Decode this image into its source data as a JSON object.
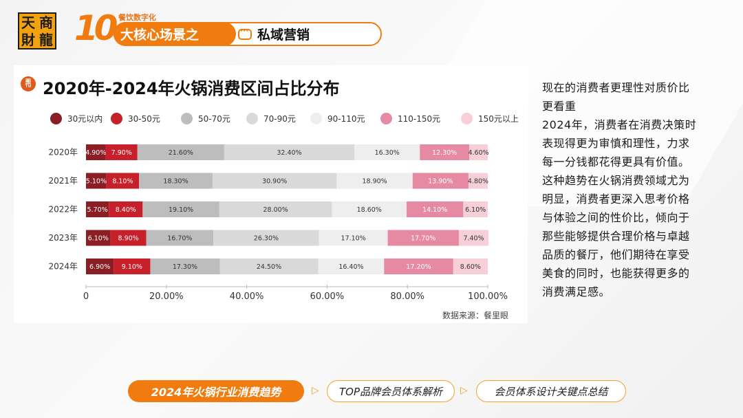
{
  "logo": {
    "chars": [
      "天",
      "商",
      "財",
      "龍"
    ]
  },
  "header": {
    "ten": "10",
    "sub_label": "餐饮数字化",
    "title_left": "大核心场景之",
    "title_right": "私域营销"
  },
  "chart_data": {
    "type": "bar",
    "orientation": "horizontal",
    "stacked": true,
    "title": "2020年-2024年火锅消费区间占比分布",
    "categories": [
      "2020年",
      "2021年",
      "2022年",
      "2023年",
      "2024年"
    ],
    "series": [
      {
        "name": "30元以内",
        "color": "#8b1d24",
        "values": [
          4.9,
          5.1,
          5.7,
          6.1,
          6.9
        ],
        "labels": [
          "4.90%",
          "5.10%",
          "5.70%",
          "6.10%",
          "6.90%"
        ]
      },
      {
        "name": "30-50元",
        "color": "#c8202a",
        "values": [
          7.9,
          8.1,
          8.4,
          8.9,
          9.1
        ],
        "labels": [
          "7.90%",
          "8.10%",
          "8.40%",
          "8.90%",
          "9.10%"
        ]
      },
      {
        "name": "50-70元",
        "color": "#bdbdbd",
        "values": [
          21.6,
          18.3,
          19.1,
          16.7,
          17.3
        ],
        "labels": [
          "21.60%",
          "18.30%",
          "19.10%",
          "16.70%",
          "17.30%"
        ]
      },
      {
        "name": "70-90元",
        "color": "#d9d9d9",
        "values": [
          32.4,
          30.9,
          28.0,
          26.3,
          24.5
        ],
        "labels": [
          "32.40%",
          "30.90%",
          "28.00%",
          "26.30%",
          "24.50%"
        ]
      },
      {
        "name": "90-110元",
        "color": "#eeeeee",
        "values": [
          16.3,
          18.9,
          18.6,
          17.1,
          16.4
        ],
        "labels": [
          "16.30%",
          "18.90%",
          "18.60%",
          "17.10%",
          "16.40%"
        ]
      },
      {
        "name": "110-150元",
        "color": "#e58aa2",
        "values": [
          12.3,
          13.9,
          14.1,
          17.7,
          17.2
        ],
        "labels": [
          "12.30%",
          "13.90%",
          "14.10%",
          "17.70%",
          "17.20%"
        ]
      },
      {
        "name": "150元以上",
        "color": "#f6cfd9",
        "values": [
          4.6,
          4.8,
          6.1,
          7.4,
          8.6
        ],
        "labels": [
          "4.60%",
          "4.80%",
          "6.10%",
          "7.40%",
          "8.60%"
        ]
      }
    ],
    "xlim": [
      0,
      100
    ],
    "xticks": [
      0,
      20,
      40,
      60,
      80,
      100
    ],
    "xtick_labels": [
      "0",
      "20.00%",
      "40.00%",
      "60.00%",
      "80.00%",
      "100.00%"
    ],
    "legend_position": "top",
    "grid": false
  },
  "chart_card": {
    "icon_text_top": "图",
    "icon_text_bottom": "TU",
    "source": "数据来源：餐里眼"
  },
  "right_text": {
    "lines": [
      "现在的消费者更理性对质价比",
      "更看重",
      "2024年，消费者在消费决策时",
      "表现得更为审慎和理性，力求",
      "每一分钱都花得更具有价值。",
      "这种趋势在火锅消费领域尤为",
      "明显，消费者更深入思考价格",
      "与体验之间的性价比，倾向于",
      "那些能够提供合理价格与卓越",
      "品质的餐厅，他们期待在享受",
      "美食的同时，也能获得更多的",
      "消费满足感。"
    ]
  },
  "bottom_nav": {
    "items": [
      "2024年火锅行业消费趋势",
      "TOP品牌会员体系解析",
      "会员体系设计关键点总结"
    ],
    "arrow": "▷"
  },
  "colors": {
    "accent": "#f07c10",
    "dark_red": "#8b1d24"
  }
}
